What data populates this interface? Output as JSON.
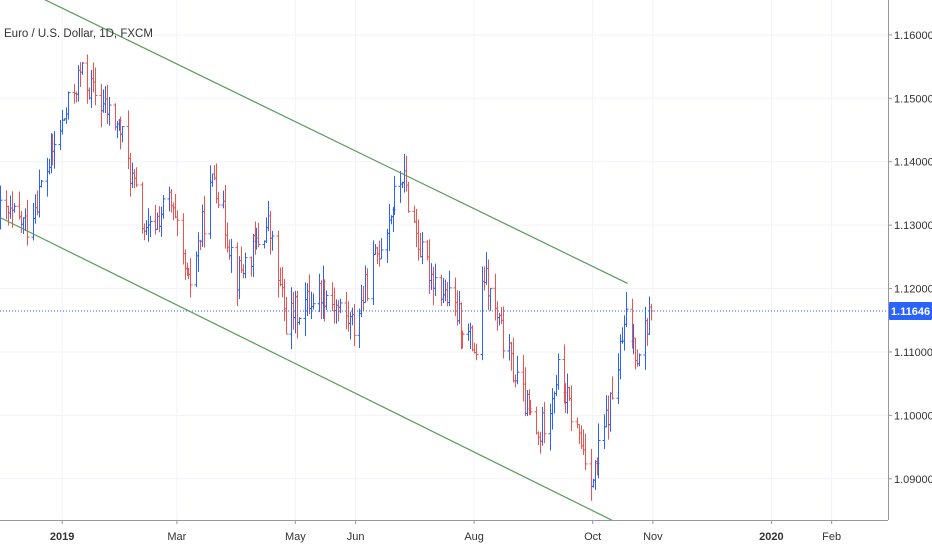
{
  "chart_data": {
    "type": "bar",
    "title": "Euro / U.S. Dollar, 1D, FXCM",
    "symbol": "EURUSD",
    "interval": "1D",
    "source": "FXCM",
    "y_axis": {
      "position": "right",
      "ticks": [
        "1.16000",
        "1.15000",
        "1.14000",
        "1.13000",
        "1.12000",
        "1.11000",
        "1.10000",
        "1.09000"
      ],
      "ylim": [
        1.0835,
        1.1655
      ]
    },
    "x_axis": {
      "ticks": [
        "2019",
        "Mar",
        "May",
        "Jun",
        "Aug",
        "Oct",
        "Nov",
        "2020",
        "Feb"
      ],
      "bold_ticks": [
        "2019",
        "2020"
      ],
      "xlim": [
        "2018-11-30",
        "2020-03-01"
      ]
    },
    "last_price": {
      "value": 1.11646,
      "label": "1.11646",
      "color": "#2962ff"
    },
    "trendlines": [
      {
        "name": "upper channel line",
        "color": "#5a9a5a",
        "points": [
          {
            "date": "2018-12-10",
            "price": 1.1675
          },
          {
            "date": "2019-10-19",
            "price": 1.1208
          }
        ]
      },
      {
        "name": "lower channel line",
        "color": "#5a9a5a",
        "points": [
          {
            "date": "2018-11-30",
            "price": 1.1312
          },
          {
            "date": "2019-10-14",
            "price": 1.083
          }
        ]
      }
    ],
    "colors": {
      "up": "#2962ff",
      "down": "#ef5350",
      "grid": "#f0f3fa",
      "axis": "#9598a1"
    },
    "series": [
      {
        "name": "OHLC bars",
        "anchors": [
          {
            "date": "2018-11-30",
            "price": 1.132
          },
          {
            "date": "2018-12-14",
            "price": 1.13
          },
          {
            "date": "2018-12-31",
            "price": 1.145
          },
          {
            "date": "2019-01-10",
            "price": 1.154
          },
          {
            "date": "2019-01-31",
            "price": 1.145
          },
          {
            "date": "2019-02-13",
            "price": 1.128
          },
          {
            "date": "2019-02-25",
            "price": 1.134
          },
          {
            "date": "2019-03-07",
            "price": 1.12
          },
          {
            "date": "2019-03-20",
            "price": 1.138
          },
          {
            "date": "2019-04-01",
            "price": 1.122
          },
          {
            "date": "2019-04-17",
            "price": 1.13
          },
          {
            "date": "2019-04-26",
            "price": 1.115
          },
          {
            "date": "2019-05-15",
            "price": 1.12
          },
          {
            "date": "2019-05-31",
            "price": 1.114
          },
          {
            "date": "2019-06-25",
            "price": 1.138
          },
          {
            "date": "2019-07-05",
            "price": 1.125
          },
          {
            "date": "2019-07-25",
            "price": 1.115
          },
          {
            "date": "2019-08-02",
            "price": 1.11
          },
          {
            "date": "2019-08-06",
            "price": 1.122
          },
          {
            "date": "2019-08-20",
            "price": 1.108
          },
          {
            "date": "2019-09-03",
            "price": 1.096
          },
          {
            "date": "2019-09-13",
            "price": 1.107
          },
          {
            "date": "2019-10-01",
            "price": 1.09
          },
          {
            "date": "2019-10-11",
            "price": 1.103
          },
          {
            "date": "2019-10-18",
            "price": 1.115
          },
          {
            "date": "2019-10-24",
            "price": 1.11
          },
          {
            "date": "2019-10-31",
            "price": 1.1164
          }
        ]
      }
    ]
  }
}
